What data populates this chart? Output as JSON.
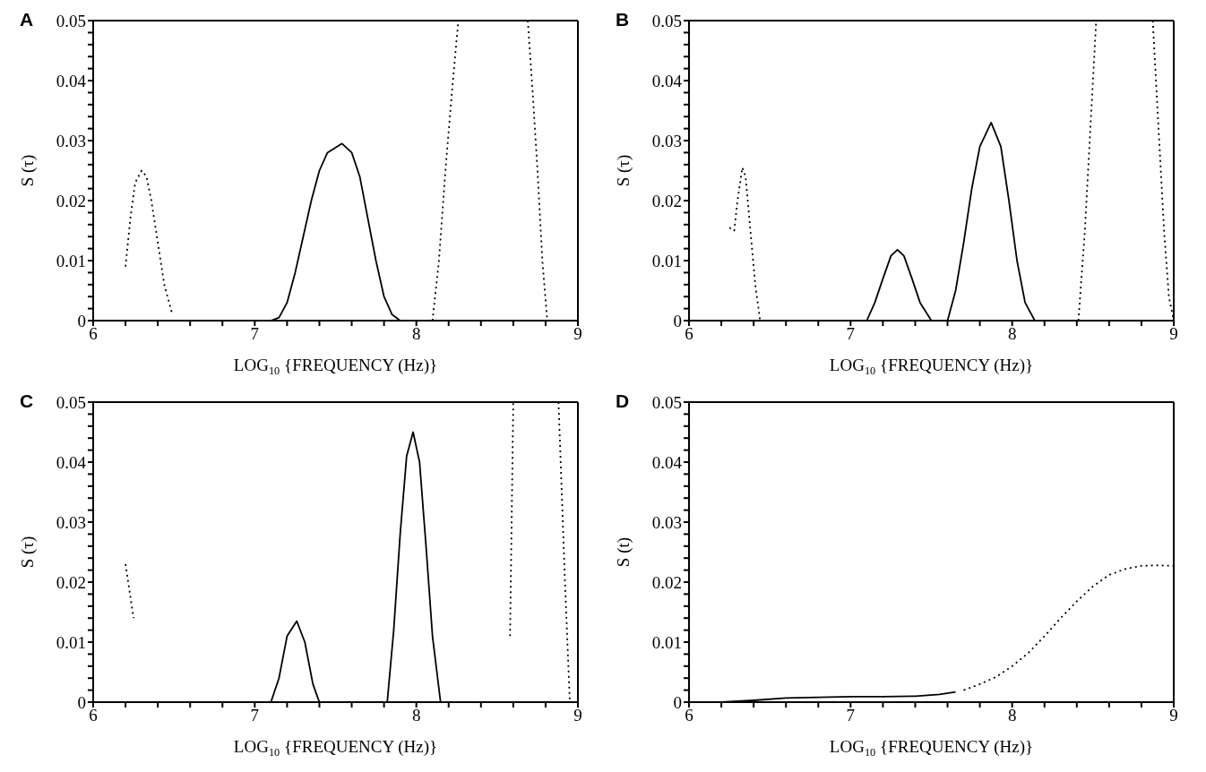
{
  "chart_data": [
    {
      "type": "line",
      "title": "A",
      "xlabel": "LOG$_{10}$ {FREQUENCY (Hz)}",
      "ylabel": "S (τ)",
      "xlim": [
        6,
        9
      ],
      "ylim": [
        0,
        0.05
      ],
      "xticks": [
        6,
        {
          "value": 6.2,
          "label": null
        },
        {
          "value": 6.4,
          "label": null
        },
        {
          "value": 6.6,
          "label": null
        },
        {
          "value": 6.8,
          "label": null
        },
        7,
        {
          "value": 7.2,
          "label": null
        },
        {
          "value": 7.4,
          "label": null
        },
        {
          "value": 7.6,
          "label": null
        },
        {
          "value": 7.8,
          "label": null
        },
        8,
        {
          "value": 8.2,
          "label": null
        },
        {
          "value": 8.4,
          "label": null
        },
        {
          "value": 8.6,
          "label": null
        },
        {
          "value": 8.8,
          "label": null
        },
        9
      ],
      "yticks": [
        0,
        {
          "value": 0.002,
          "label": null
        },
        {
          "value": 0.004,
          "label": null
        },
        {
          "value": 0.006,
          "label": null
        },
        {
          "value": 0.008,
          "label": null
        },
        0.01,
        {
          "value": 0.012,
          "label": null
        },
        {
          "value": 0.014,
          "label": null
        },
        {
          "value": 0.016,
          "label": null
        },
        {
          "value": 0.018,
          "label": null
        },
        0.02,
        {
          "value": 0.022,
          "label": null
        },
        {
          "value": 0.024,
          "label": null
        },
        {
          "value": 0.026,
          "label": null
        },
        {
          "value": 0.028,
          "label": null
        },
        0.03,
        {
          "value": 0.032,
          "label": null
        },
        {
          "value": 0.034,
          "label": null
        },
        {
          "value": 0.036,
          "label": null
        },
        {
          "value": 0.038,
          "label": null
        },
        0.04,
        {
          "value": 0.042,
          "label": null
        },
        {
          "value": 0.044,
          "label": null
        },
        {
          "value": 0.046,
          "label": null
        },
        {
          "value": 0.048,
          "label": null
        },
        0.05
      ],
      "series": [
        {
          "color": "#000000",
          "line_style": "solid",
          "x": [
            7.1,
            7.15,
            7.2,
            7.25,
            7.3,
            7.35,
            7.4,
            7.45,
            7.54,
            7.6,
            7.65,
            7.7,
            7.75,
            7.8,
            7.85,
            7.9
          ],
          "values": [
            0,
            0.0005,
            0.003,
            0.008,
            0.014,
            0.02,
            0.025,
            0.028,
            0.0295,
            0.028,
            0.024,
            0.017,
            0.01,
            0.004,
            0.001,
            0
          ]
        },
        {
          "color": "#000000",
          "line_style": "dotted",
          "x": [
            6.2,
            6.23,
            6.26,
            6.3,
            6.33,
            6.36,
            6.4,
            6.44,
            6.49,
            7.5,
            8.1,
            8.14,
            8.18,
            8.22,
            8.26,
            8.5,
            8.69,
            8.72,
            8.75,
            8.78,
            8.81
          ],
          "values": [
            0.009,
            0.017,
            0.023,
            0.025,
            0.024,
            0.02,
            0.013,
            0.006,
            0.001,
            null,
            0,
            0.01,
            0.025,
            0.038,
            0.05,
            null,
            0.05,
            0.038,
            0.025,
            0.01,
            0
          ]
        }
      ]
    },
    {
      "type": "line",
      "title": "B",
      "xlabel": "LOG$_{10}$ {FREQUENCY (Hz)}",
      "ylabel": "S (τ)",
      "xlim": [
        6,
        9
      ],
      "ylim": [
        0,
        0.05
      ],
      "xticks": [
        6,
        {
          "value": 6.2,
          "label": null
        },
        {
          "value": 6.4,
          "label": null
        },
        {
          "value": 6.6,
          "label": null
        },
        {
          "value": 6.8,
          "label": null
        },
        7,
        {
          "value": 7.2,
          "label": null
        },
        {
          "value": 7.4,
          "label": null
        },
        {
          "value": 7.6,
          "label": null
        },
        {
          "value": 7.8,
          "label": null
        },
        8,
        {
          "value": 8.2,
          "label": null
        },
        {
          "value": 8.4,
          "label": null
        },
        {
          "value": 8.6,
          "label": null
        },
        {
          "value": 8.8,
          "label": null
        },
        9
      ],
      "yticks": [
        0,
        {
          "value": 0.002,
          "label": null
        },
        {
          "value": 0.004,
          "label": null
        },
        {
          "value": 0.006,
          "label": null
        },
        {
          "value": 0.008,
          "label": null
        },
        0.01,
        {
          "value": 0.012,
          "label": null
        },
        {
          "value": 0.014,
          "label": null
        },
        {
          "value": 0.016,
          "label": null
        },
        {
          "value": 0.018,
          "label": null
        },
        0.02,
        {
          "value": 0.022,
          "label": null
        },
        {
          "value": 0.024,
          "label": null
        },
        {
          "value": 0.026,
          "label": null
        },
        {
          "value": 0.028,
          "label": null
        },
        0.03,
        {
          "value": 0.032,
          "label": null
        },
        {
          "value": 0.034,
          "label": null
        },
        {
          "value": 0.036,
          "label": null
        },
        {
          "value": 0.038,
          "label": null
        },
        0.04,
        {
          "value": 0.042,
          "label": null
        },
        {
          "value": 0.044,
          "label": null
        },
        {
          "value": 0.046,
          "label": null
        },
        {
          "value": 0.048,
          "label": null
        },
        0.05
      ],
      "series": [
        {
          "color": "#000000",
          "line_style": "solid",
          "x": [
            7.1,
            7.15,
            7.2,
            7.25,
            7.29,
            7.33,
            7.38,
            7.43,
            7.5,
            7.6,
            7.65,
            7.7,
            7.75,
            7.8,
            7.87,
            7.93,
            7.98,
            8.03,
            8.08,
            8.14
          ],
          "values": [
            0,
            0.003,
            0.007,
            0.0108,
            0.0118,
            0.0108,
            0.007,
            0.003,
            0,
            0,
            0.005,
            0.013,
            0.022,
            0.029,
            0.033,
            0.029,
            0.02,
            0.01,
            0.003,
            0
          ]
        },
        {
          "color": "#000000",
          "line_style": "dotted",
          "x": [
            6.25,
            6.28,
            6.3,
            6.33,
            6.35,
            6.38,
            6.41,
            6.44,
            7.5,
            8.41,
            8.45,
            8.49,
            8.52,
            8.7,
            8.87,
            8.9,
            8.94,
            8.97,
            9.0
          ],
          "values": [
            0.0155,
            0.015,
            0.02,
            0.0255,
            0.024,
            0.015,
            0.006,
            0,
            null,
            0,
            0.015,
            0.035,
            0.05,
            null,
            0.05,
            0.035,
            0.015,
            0.004,
            0
          ]
        }
      ]
    },
    {
      "type": "line",
      "title": "C",
      "xlabel": "LOG$_{10}$ {FREQUENCY (Hz)}",
      "ylabel": "S (τ)",
      "xlim": [
        6,
        9
      ],
      "ylim": [
        0,
        0.05
      ],
      "xticks": [
        6,
        {
          "value": 6.2,
          "label": null
        },
        {
          "value": 6.4,
          "label": null
        },
        {
          "value": 6.6,
          "label": null
        },
        {
          "value": 6.8,
          "label": null
        },
        7,
        {
          "value": 7.2,
          "label": null
        },
        {
          "value": 7.4,
          "label": null
        },
        {
          "value": 7.6,
          "label": null
        },
        {
          "value": 7.8,
          "label": null
        },
        8,
        {
          "value": 8.2,
          "label": null
        },
        {
          "value": 8.4,
          "label": null
        },
        {
          "value": 8.6,
          "label": null
        },
        {
          "value": 8.8,
          "label": null
        },
        9
      ],
      "yticks": [
        0,
        {
          "value": 0.002,
          "label": null
        },
        {
          "value": 0.004,
          "label": null
        },
        {
          "value": 0.006,
          "label": null
        },
        {
          "value": 0.008,
          "label": null
        },
        0.01,
        {
          "value": 0.012,
          "label": null
        },
        {
          "value": 0.014,
          "label": null
        },
        {
          "value": 0.016,
          "label": null
        },
        {
          "value": 0.018,
          "label": null
        },
        0.02,
        {
          "value": 0.022,
          "label": null
        },
        {
          "value": 0.024,
          "label": null
        },
        {
          "value": 0.026,
          "label": null
        },
        {
          "value": 0.028,
          "label": null
        },
        0.03,
        {
          "value": 0.032,
          "label": null
        },
        {
          "value": 0.034,
          "label": null
        },
        {
          "value": 0.036,
          "label": null
        },
        {
          "value": 0.038,
          "label": null
        },
        0.04,
        {
          "value": 0.042,
          "label": null
        },
        {
          "value": 0.044,
          "label": null
        },
        {
          "value": 0.046,
          "label": null
        },
        {
          "value": 0.048,
          "label": null
        },
        0.05
      ],
      "series": [
        {
          "color": "#000000",
          "line_style": "solid",
          "x": [
            7.1,
            7.15,
            7.2,
            7.26,
            7.31,
            7.36,
            7.4,
            7.82,
            7.86,
            7.9,
            7.94,
            7.98,
            8.02,
            8.06,
            8.1,
            8.15
          ],
          "values": [
            0,
            0.004,
            0.011,
            0.0135,
            0.01,
            0.003,
            0,
            0,
            0.012,
            0.028,
            0.041,
            0.045,
            0.04,
            0.026,
            0.011,
            0
          ]
        },
        {
          "color": "#000000",
          "line_style": "dotted",
          "x": [
            6.2,
            6.25,
            7.5,
            8.58,
            8.6,
            8.75,
            8.88,
            8.92,
            8.95
          ],
          "values": [
            0.023,
            0.014,
            null,
            0.011,
            0.05,
            null,
            0.05,
            0.02,
            0
          ]
        }
      ]
    },
    {
      "type": "line",
      "title": "D",
      "xlabel": "LOG$_{10}$ {FREQUENCY (Hz)}",
      "ylabel": "S (t)",
      "xlim": [
        6,
        9
      ],
      "ylim": [
        0,
        0.05
      ],
      "xticks": [
        6,
        {
          "value": 6.2,
          "label": null
        },
        {
          "value": 6.4,
          "label": null
        },
        {
          "value": 6.6,
          "label": null
        },
        {
          "value": 6.8,
          "label": null
        },
        7,
        {
          "value": 7.2,
          "label": null
        },
        {
          "value": 7.4,
          "label": null
        },
        {
          "value": 7.6,
          "label": null
        },
        {
          "value": 7.8,
          "label": null
        },
        8,
        {
          "value": 8.2,
          "label": null
        },
        {
          "value": 8.4,
          "label": null
        },
        {
          "value": 8.6,
          "label": null
        },
        {
          "value": 8.8,
          "label": null
        },
        9
      ],
      "yticks": [
        0,
        {
          "value": 0.002,
          "label": null
        },
        {
          "value": 0.004,
          "label": null
        },
        {
          "value": 0.006,
          "label": null
        },
        {
          "value": 0.008,
          "label": null
        },
        0.01,
        {
          "value": 0.012,
          "label": null
        },
        {
          "value": 0.014,
          "label": null
        },
        {
          "value": 0.016,
          "label": null
        },
        {
          "value": 0.018,
          "label": null
        },
        0.02,
        {
          "value": 0.022,
          "label": null
        },
        {
          "value": 0.024,
          "label": null
        },
        {
          "value": 0.026,
          "label": null
        },
        {
          "value": 0.028,
          "label": null
        },
        0.03,
        {
          "value": 0.032,
          "label": null
        },
        {
          "value": 0.034,
          "label": null
        },
        {
          "value": 0.036,
          "label": null
        },
        {
          "value": 0.038,
          "label": null
        },
        0.04,
        {
          "value": 0.042,
          "label": null
        },
        {
          "value": 0.044,
          "label": null
        },
        {
          "value": 0.046,
          "label": null
        },
        {
          "value": 0.048,
          "label": null
        },
        0.05
      ],
      "series": [
        {
          "color": "#000000",
          "line_style": "solid",
          "x": [
            6.2,
            6.4,
            6.6,
            6.8,
            7.0,
            7.2,
            7.4,
            7.55,
            7.65
          ],
          "values": [
            0,
            0.0003,
            0.0007,
            0.0008,
            0.0009,
            0.0009,
            0.001,
            0.0013,
            0.0017
          ]
        },
        {
          "color": "#000000",
          "line_style": "dotted",
          "x": [
            7.7,
            7.8,
            7.9,
            8.0,
            8.1,
            8.2,
            8.3,
            8.4,
            8.5,
            8.6,
            8.7,
            8.8,
            8.9,
            9.0
          ],
          "values": [
            0.002,
            0.003,
            0.0042,
            0.006,
            0.0082,
            0.011,
            0.014,
            0.0168,
            0.0193,
            0.0212,
            0.0222,
            0.0227,
            0.0228,
            0.0227
          ]
        }
      ]
    }
  ]
}
